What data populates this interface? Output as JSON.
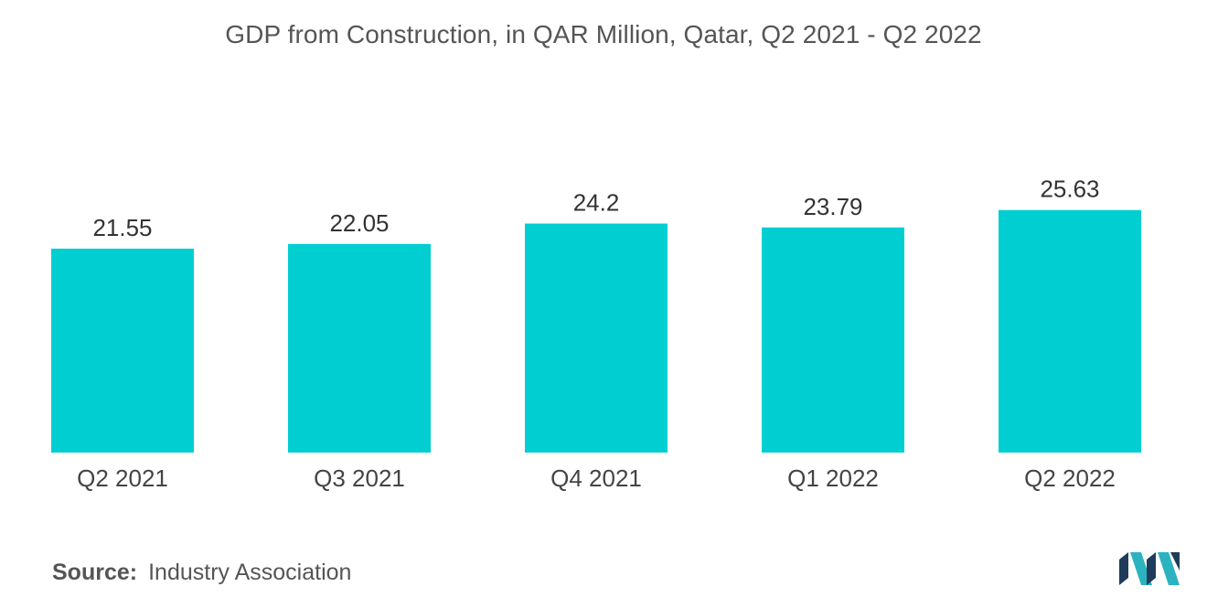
{
  "chart_data": {
    "type": "bar",
    "title": "GDP from Construction, in QAR Million, Qatar, Q2 2021 - Q2 2022",
    "categories": [
      "Q2 2021",
      "Q3 2021",
      "Q4 2021",
      "Q1 2022",
      "Q2 2022"
    ],
    "values": [
      21.55,
      22.05,
      24.2,
      23.79,
      25.63
    ],
    "value_labels": [
      "21.55",
      "22.05",
      "24.2",
      "23.79",
      "25.63"
    ],
    "xlabel": "",
    "ylabel": "",
    "ylim": [
      0,
      26
    ],
    "grid": false,
    "bar_color": "#00ced1"
  },
  "footer": {
    "source_label": "Source:",
    "source_value": "Industry Association"
  },
  "brand": {
    "logo_icon": "mordor-intelligence-logo-icon",
    "colors": [
      "#1f3c5a",
      "#2bb3c0"
    ]
  }
}
